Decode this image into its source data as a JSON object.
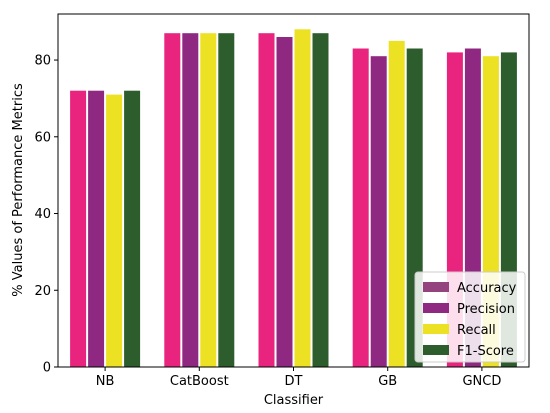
{
  "chart_data": {
    "type": "bar",
    "xlabel": "Classifier",
    "ylabel": "% Values of Performance Metrics",
    "categories": [
      "NB",
      "CatBoost",
      "DT",
      "GB",
      "GNCD"
    ],
    "ylim": [
      0,
      92
    ],
    "yticks": [
      0,
      20,
      40,
      60,
      80
    ],
    "grid": false,
    "legend_position": "bottom-right",
    "series": [
      {
        "name": "Accuracy",
        "values": [
          72,
          87,
          87,
          83,
          82
        ],
        "color": "#e8247e",
        "legend_color": "#94437e"
      },
      {
        "name": "Precision",
        "values": [
          72,
          87,
          86,
          81,
          83
        ],
        "color": "#8f2880",
        "legend_color": "#8f2880"
      },
      {
        "name": "Recall",
        "values": [
          71,
          87,
          88,
          85,
          81
        ],
        "color": "#ede124",
        "legend_color": "#ede124"
      },
      {
        "name": "F1-Score",
        "values": [
          72,
          87,
          87,
          83,
          82
        ],
        "color": "#2d5d2d",
        "legend_color": "#2d5d2d"
      }
    ]
  }
}
